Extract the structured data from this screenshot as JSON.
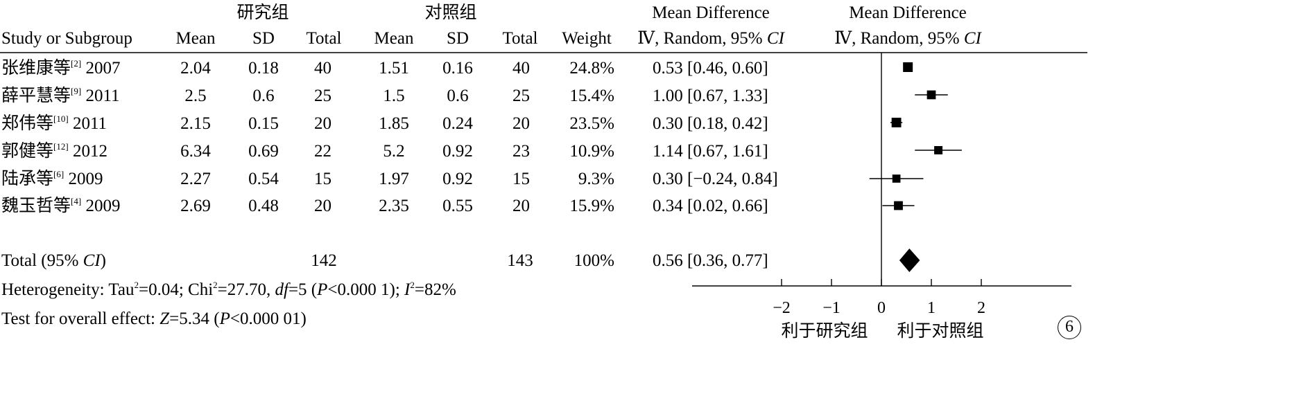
{
  "header": {
    "group1": "研究组",
    "group2": "对照组",
    "md_title": "Mean Difference",
    "plot_title": "Mean Difference",
    "method": "Ⅳ, Random, 95% ",
    "ci": "CI"
  },
  "columns": {
    "study": "Study or Subgroup",
    "mean1": "Mean",
    "sd1": "SD",
    "total1": "Total",
    "mean2": "Mean",
    "sd2": "SD",
    "total2": "Total",
    "weight": "Weight"
  },
  "studies": [
    {
      "name": "张维康等",
      "ref": "[2]",
      "year": "2007",
      "mean1": "2.04",
      "sd1": "0.18",
      "n1": "40",
      "mean2": "1.51",
      "sd2": "0.16",
      "n2": "40",
      "weight": "24.8%",
      "md": "0.53 [0.46, 0.60]"
    },
    {
      "name": "薛平慧等",
      "ref": "[9]",
      "year": "2011",
      "mean1": "2.5",
      "sd1": "0.6",
      "n1": "25",
      "mean2": "1.5",
      "sd2": "0.6",
      "n2": "25",
      "weight": "15.4%",
      "md": "1.00 [0.67, 1.33]"
    },
    {
      "name": "郑伟等",
      "ref": "[10]",
      "year": "2011",
      "mean1": "2.15",
      "sd1": "0.15",
      "n1": "20",
      "mean2": "1.85",
      "sd2": "0.24",
      "n2": "20",
      "weight": "23.5%",
      "md": "0.30 [0.18, 0.42]"
    },
    {
      "name": "郭健等",
      "ref": "[12]",
      "year": "2012",
      "mean1": "6.34",
      "sd1": "0.69",
      "n1": "22",
      "mean2": "5.2",
      "sd2": "0.92",
      "n2": "23",
      "weight": "10.9%",
      "md": "1.14 [0.67, 1.61]"
    },
    {
      "name": "陆承等",
      "ref": "[6]",
      "year": "2009",
      "mean1": "2.27",
      "sd1": "0.54",
      "n1": "15",
      "mean2": "1.97",
      "sd2": "0.92",
      "n2": "15",
      "weight": "9.3%",
      "md": "0.30 [−0.24, 0.84]"
    },
    {
      "name": "魏玉哲等",
      "ref": "[4]",
      "year": "2009",
      "mean1": "2.69",
      "sd1": "0.48",
      "n1": "20",
      "mean2": "2.35",
      "sd2": "0.55",
      "n2": "20",
      "weight": "15.9%",
      "md": "0.34 [0.02, 0.66]"
    }
  ],
  "total": {
    "label_pre": "Total (95% ",
    "label_ci": "CI",
    "label_post": ")",
    "n1": "142",
    "n2": "143",
    "weight": "100%",
    "md": "0.56 [0.36, 0.77]"
  },
  "heterogeneity": {
    "a": "Heterogeneity: Tau",
    "sup1": "2",
    "b": "=0.04; Chi",
    "sup2": "2",
    "c": "=27.70, ",
    "df": "df",
    "d": "=5 (",
    "p": "P",
    "e": "<0.000 1); ",
    "i": "I",
    "sup3": "2",
    "f": "=82%"
  },
  "overall": {
    "a": "Test for overall effect: ",
    "z": "Z",
    "b": "=5.34 (",
    "p": "P",
    "c": "<0.000 01)"
  },
  "axis": {
    "favours_left": "利于研究组",
    "favours_right": "利于对照组"
  },
  "badge": "6",
  "chart_data": {
    "type": "forest",
    "x_ticks": [
      -2,
      -1,
      0,
      1,
      2
    ],
    "x_tick_labels": [
      "−2",
      "−1",
      "0",
      "1",
      "2"
    ],
    "xlim": [
      -2.0,
      3.0
    ],
    "studies": [
      {
        "study": "张维康等 2007",
        "md": 0.53,
        "lo": 0.46,
        "hi": 0.6,
        "weight": 24.8
      },
      {
        "study": "薛平慧等 2011",
        "md": 1.0,
        "lo": 0.67,
        "hi": 1.33,
        "weight": 15.4
      },
      {
        "study": "郑伟等 2011",
        "md": 0.3,
        "lo": 0.18,
        "hi": 0.42,
        "weight": 23.5
      },
      {
        "study": "郭健等 2012",
        "md": 1.14,
        "lo": 0.67,
        "hi": 1.61,
        "weight": 10.9
      },
      {
        "study": "陆承等 2009",
        "md": 0.3,
        "lo": -0.24,
        "hi": 0.84,
        "weight": 9.3
      },
      {
        "study": "魏玉哲等 2009",
        "md": 0.34,
        "lo": 0.02,
        "hi": 0.66,
        "weight": 15.9
      }
    ],
    "pooled": {
      "md": 0.56,
      "lo": 0.36,
      "hi": 0.77
    }
  }
}
